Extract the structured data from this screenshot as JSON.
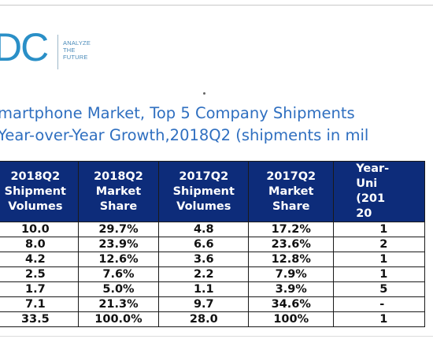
{
  "logo": {
    "letters": "DC",
    "tagline": [
      "ANALYZE",
      "THE",
      "FUTURE"
    ]
  },
  "title": {
    "line1": "martphone Market, Top 5 Company Shipments",
    "line2": "Year-over-Year Growth,2018Q2 (shipments in mil"
  },
  "table": {
    "headers": [
      "2018Q2 Shipment Volumes",
      "2018Q2 Market Share",
      "2017Q2 Shipment Volumes",
      "2017Q2 Market Share",
      "Year- Uni (201 20"
    ],
    "rows": [
      [
        "10.0",
        "29.7%",
        "4.8",
        "17.2%",
        "1"
      ],
      [
        "8.0",
        "23.9%",
        "6.6",
        "23.6%",
        "2"
      ],
      [
        "4.2",
        "12.6%",
        "3.6",
        "12.8%",
        "1"
      ],
      [
        "2.5",
        "7.6%",
        "2.2",
        "7.9%",
        "1"
      ],
      [
        "1.7",
        "5.0%",
        "1.1",
        "3.9%",
        "5"
      ],
      [
        "7.1",
        "21.3%",
        "9.7",
        "34.6%",
        "-"
      ],
      [
        "33.5",
        "100.0%",
        "28.0",
        "100%",
        "1"
      ]
    ]
  },
  "colors": {
    "header_bg": "#0d2c7a",
    "title": "#2f6fc0",
    "logo": "#2a8fc7"
  }
}
